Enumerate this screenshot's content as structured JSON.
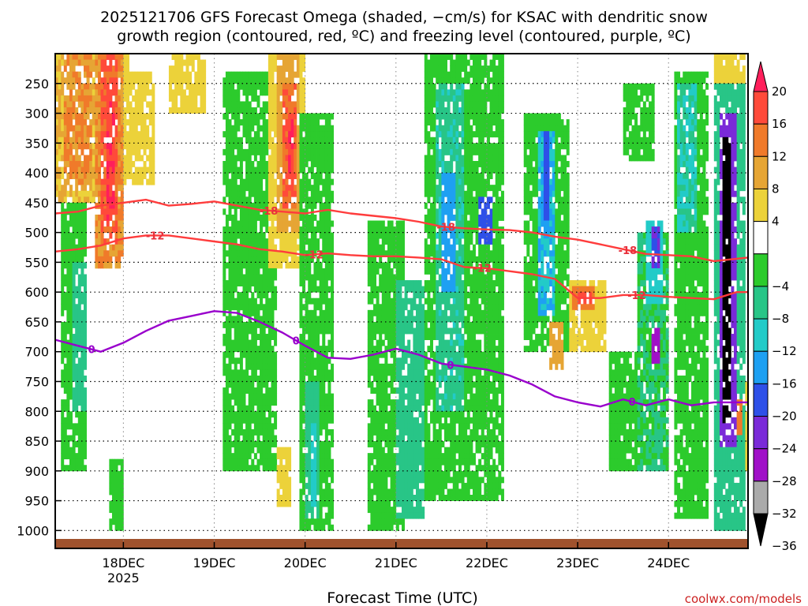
{
  "title_line1": "2025121706 GFS Forecast Omega (shaded, −cm/s) for KSAC with dendritic snow",
  "title_line2": "growth region (contoured, red, ºC) and freezing level (contoured, purple, ºC)",
  "credit": "coolwx.com/models",
  "chart_data": {
    "type": "heatmap",
    "title": "2025121706 GFS Forecast Omega (shaded, −cm/s) for KSAC",
    "xlabel": "Forecast Time (UTC)",
    "ylabel": "",
    "x_range_days": [
      17.25,
      24.875
    ],
    "y_range_hpa": [
      200,
      1030
    ],
    "x_ticks": [
      {
        "day": 18,
        "label": "18DEC",
        "sublabel": "2025"
      },
      {
        "day": 19,
        "label": "19DEC",
        "sublabel": ""
      },
      {
        "day": 20,
        "label": "20DEC",
        "sublabel": ""
      },
      {
        "day": 21,
        "label": "21DEC",
        "sublabel": ""
      },
      {
        "day": 22,
        "label": "22DEC",
        "sublabel": ""
      },
      {
        "day": 23,
        "label": "23DEC",
        "sublabel": ""
      },
      {
        "day": 24,
        "label": "24DEC",
        "sublabel": ""
      }
    ],
    "y_ticks": [
      {
        "value": 250,
        "label": "250"
      },
      {
        "value": 300,
        "label": "300"
      },
      {
        "value": 350,
        "label": "350"
      },
      {
        "value": 400,
        "label": "400"
      },
      {
        "value": 450,
        "label": "450"
      },
      {
        "value": 500,
        "label": "500"
      },
      {
        "value": 550,
        "label": "550"
      },
      {
        "value": 600,
        "label": "600"
      },
      {
        "value": 650,
        "label": "650"
      },
      {
        "value": 700,
        "label": "700"
      },
      {
        "value": 750,
        "label": "750"
      },
      {
        "value": 800,
        "label": "800"
      },
      {
        "value": 850,
        "label": "850"
      },
      {
        "value": 900,
        "label": "900"
      },
      {
        "value": 950,
        "label": "950"
      },
      {
        "value": 1000,
        "label": "1000"
      }
    ],
    "colorbar": {
      "labels": [
        "20",
        "16",
        "12",
        "8",
        "4",
        "−4",
        "−8",
        "−12",
        "−16",
        "−20",
        "−24",
        "−28",
        "−32",
        "−36"
      ],
      "colors": [
        "#ff1f5b",
        "#ff4a3a",
        "#f07a2a",
        "#e6a534",
        "#ecd23a",
        "#ffffff",
        "#2ccb2c",
        "#28c587",
        "#22cbc8",
        "#1ea0f2",
        "#2e50e8",
        "#7a2ad8",
        "#a010c8",
        "#aaaaaa",
        "#000000"
      ]
    },
    "series": [
      {
        "name": "-18",
        "color": "#ff3c3c",
        "x": [
          17.25,
          17.5,
          17.75,
          18.0,
          18.25,
          18.5,
          18.75,
          19.0,
          19.25,
          19.5,
          19.75,
          20.0,
          20.25,
          20.5,
          20.75,
          21.0,
          21.25,
          21.5,
          21.75,
          22.0,
          22.25,
          22.5,
          22.75,
          23.0,
          23.25,
          23.5,
          23.75,
          24.0,
          24.25,
          24.5,
          24.75,
          24.875
        ],
        "y": [
          468,
          465,
          455,
          450,
          445,
          455,
          452,
          448,
          455,
          462,
          465,
          468,
          462,
          468,
          472,
          476,
          482,
          490,
          493,
          495,
          496,
          500,
          507,
          512,
          520,
          528,
          536,
          538,
          540,
          548,
          544,
          542
        ]
      },
      {
        "name": "-12",
        "color": "#ff3c3c",
        "x": [
          17.25,
          17.5,
          17.75,
          18.0,
          18.25,
          18.5,
          18.75,
          19.0,
          19.25,
          19.5,
          19.75,
          20.0,
          20.25,
          20.5,
          20.75,
          21.0,
          21.25,
          21.5,
          21.75,
          22.0,
          22.25,
          22.5,
          22.75,
          23.0,
          23.25,
          23.5,
          23.75,
          24.0,
          24.25,
          24.5,
          24.75,
          24.875
        ],
        "y": [
          532,
          528,
          522,
          510,
          505,
          505,
          510,
          515,
          520,
          528,
          532,
          538,
          535,
          538,
          540,
          540,
          542,
          545,
          558,
          560,
          565,
          570,
          578,
          610,
          610,
          605,
          605,
          608,
          610,
          612,
          600,
          600
        ]
      },
      {
        "name": "0",
        "color": "#9900cc",
        "x": [
          17.25,
          17.5,
          17.75,
          18.0,
          18.25,
          18.5,
          18.75,
          19.0,
          19.25,
          19.5,
          19.75,
          20.0,
          20.25,
          20.5,
          20.75,
          21.0,
          21.25,
          21.5,
          21.75,
          22.0,
          22.25,
          22.5,
          22.75,
          23.0,
          23.25,
          23.5,
          23.75,
          24.0,
          24.25,
          24.5,
          24.75,
          24.875
        ],
        "y": [
          680,
          690,
          700,
          685,
          665,
          648,
          640,
          632,
          635,
          650,
          668,
          690,
          710,
          712,
          705,
          695,
          705,
          720,
          725,
          730,
          740,
          755,
          775,
          785,
          792,
          780,
          790,
          780,
          790,
          785,
          785,
          785
        ]
      }
    ],
    "contour_labels": [
      {
        "series": "-18",
        "text": "-18",
        "x": 19.6
      },
      {
        "series": "-18",
        "text": "-18",
        "x": 21.55
      },
      {
        "series": "-18",
        "text": "-18",
        "x": 23.55
      },
      {
        "series": "-12",
        "text": "-12",
        "x": 18.35
      },
      {
        "series": "-12",
        "text": "-12",
        "x": 20.1
      },
      {
        "series": "-12",
        "text": "-12",
        "x": 21.95
      },
      {
        "series": "-12",
        "text": "-12",
        "x": 23.65
      },
      {
        "series": "0",
        "text": "0",
        "x": 17.65
      },
      {
        "series": "0",
        "text": "0",
        "x": 19.9
      },
      {
        "series": "0",
        "text": "0",
        "x": 21.6
      },
      {
        "series": "0",
        "text": "0",
        "x": 23.6
      }
    ],
    "omega_features": [
      {
        "x0": 17.25,
        "x1": 17.85,
        "p0": 200,
        "p1": 450,
        "v": 8
      },
      {
        "x0": 17.35,
        "x1": 17.65,
        "p0": 200,
        "p1": 420,
        "v": 12
      },
      {
        "x0": 17.65,
        "x1": 18.05,
        "p0": 200,
        "p1": 360,
        "v": 6
      },
      {
        "x0": 17.7,
        "x1": 18.0,
        "p0": 200,
        "p1": 560,
        "v": 12
      },
      {
        "x0": 17.75,
        "x1": 17.95,
        "p0": 200,
        "p1": 520,
        "v": 16
      },
      {
        "x0": 17.8,
        "x1": 17.92,
        "p0": 250,
        "p1": 480,
        "v": 20
      },
      {
        "x0": 18.0,
        "x1": 18.35,
        "p0": 230,
        "p1": 420,
        "v": 6
      },
      {
        "x0": 18.5,
        "x1": 18.9,
        "p0": 200,
        "p1": 300,
        "v": 6
      },
      {
        "x0": 17.3,
        "x1": 17.6,
        "p0": 450,
        "p1": 900,
        "v": -6
      },
      {
        "x0": 17.45,
        "x1": 17.6,
        "p0": 550,
        "p1": 800,
        "v": -10
      },
      {
        "x0": 17.85,
        "x1": 18.0,
        "p0": 880,
        "p1": 1000,
        "v": -6
      },
      {
        "x0": 19.1,
        "x1": 19.7,
        "p0": 230,
        "p1": 900,
        "v": -5
      },
      {
        "x0": 19.6,
        "x1": 20.0,
        "p0": 200,
        "p1": 560,
        "v": 6
      },
      {
        "x0": 19.7,
        "x1": 19.95,
        "p0": 200,
        "p1": 500,
        "v": 10
      },
      {
        "x0": 19.75,
        "x1": 19.9,
        "p0": 250,
        "p1": 460,
        "v": 16
      },
      {
        "x0": 19.8,
        "x1": 19.88,
        "p0": 300,
        "p1": 420,
        "v": 20
      },
      {
        "x0": 19.7,
        "x1": 19.85,
        "p0": 860,
        "p1": 960,
        "v": 6
      },
      {
        "x0": 19.95,
        "x1": 20.3,
        "p0": 300,
        "p1": 1000,
        "v": -6
      },
      {
        "x0": 20.0,
        "x1": 20.15,
        "p0": 750,
        "p1": 980,
        "v": -10
      },
      {
        "x0": 20.05,
        "x1": 20.13,
        "p0": 820,
        "p1": 960,
        "v": -14
      },
      {
        "x0": 20.7,
        "x1": 21.1,
        "p0": 480,
        "p1": 1000,
        "v": -6
      },
      {
        "x0": 21.0,
        "x1": 21.3,
        "p0": 580,
        "p1": 980,
        "v": -10
      },
      {
        "x0": 21.3,
        "x1": 22.2,
        "p0": 200,
        "p1": 950,
        "v": -6
      },
      {
        "x0": 21.45,
        "x1": 21.75,
        "p0": 250,
        "p1": 800,
        "v": -11
      },
      {
        "x0": 21.5,
        "x1": 21.65,
        "p0": 400,
        "p1": 600,
        "v": -18
      },
      {
        "x0": 21.9,
        "x1": 22.05,
        "p0": 440,
        "p1": 520,
        "v": -22
      },
      {
        "x0": 22.4,
        "x1": 22.9,
        "p0": 300,
        "p1": 700,
        "v": -7
      },
      {
        "x0": 22.55,
        "x1": 22.75,
        "p0": 330,
        "p1": 640,
        "v": -16
      },
      {
        "x0": 22.62,
        "x1": 22.7,
        "p0": 330,
        "p1": 480,
        "v": -22
      },
      {
        "x0": 22.7,
        "x1": 22.85,
        "p0": 650,
        "p1": 730,
        "v": 10
      },
      {
        "x0": 22.9,
        "x1": 23.3,
        "p0": 580,
        "p1": 700,
        "v": 6
      },
      {
        "x0": 22.95,
        "x1": 23.2,
        "p0": 590,
        "p1": 630,
        "v": 14
      },
      {
        "x0": 23.0,
        "x1": 23.15,
        "p0": 600,
        "p1": 620,
        "v": 18
      },
      {
        "x0": 23.35,
        "x1": 23.8,
        "p0": 700,
        "p1": 900,
        "v": -6
      },
      {
        "x0": 23.5,
        "x1": 23.85,
        "p0": 250,
        "p1": 380,
        "v": -6
      },
      {
        "x0": 23.65,
        "x1": 24.0,
        "p0": 500,
        "p1": 900,
        "v": -8
      },
      {
        "x0": 23.75,
        "x1": 23.95,
        "p0": 480,
        "p1": 620,
        "v": -14
      },
      {
        "x0": 23.8,
        "x1": 23.9,
        "p0": 490,
        "p1": 560,
        "v": -24
      },
      {
        "x0": 23.8,
        "x1": 23.9,
        "p0": 660,
        "p1": 720,
        "v": -30
      },
      {
        "x0": 24.05,
        "x1": 24.45,
        "p0": 230,
        "p1": 980,
        "v": -6
      },
      {
        "x0": 24.1,
        "x1": 24.3,
        "p0": 250,
        "p1": 500,
        "v": -12
      },
      {
        "x0": 24.5,
        "x1": 24.85,
        "p0": 250,
        "p1": 1000,
        "v": -10
      },
      {
        "x0": 24.55,
        "x1": 24.75,
        "p0": 300,
        "p1": 860,
        "v": -26
      },
      {
        "x0": 24.6,
        "x1": 24.68,
        "p0": 340,
        "p1": 820,
        "v": -38
      },
      {
        "x0": 24.6,
        "x1": 24.9,
        "p0": 750,
        "p1": 900,
        "v": 6
      },
      {
        "x0": 24.68,
        "x1": 24.8,
        "p0": 780,
        "p1": 840,
        "v": 14
      },
      {
        "x0": 24.5,
        "x1": 24.85,
        "p0": 200,
        "p1": 250,
        "v": 6
      }
    ]
  }
}
